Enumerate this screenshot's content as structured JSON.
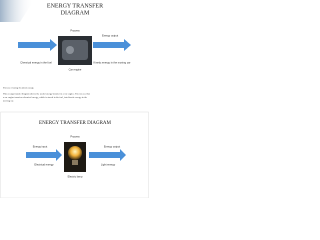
{
  "slide1": {
    "title_lines": [
      "ENERGY TRANSFER",
      "DIAGRAM"
    ],
    "process_label": "Process",
    "input_label": "Chemical energy in the fuel",
    "output_heading": "Energy output",
    "output_label": "Kinetic energy in the moving car",
    "device_label": "Car engine"
  },
  "paragraph": {
    "heading": "Process of using chemical energy",
    "lines": [
      "This energy transfer diagram shows the useful energy transfer in a car engine. You can see that",
      "a car engine transfers chemical energy, which is stored in the fuel, into kinetic energy in the",
      "moving car."
    ]
  },
  "slide2": {
    "title": "ENERGY TRANSFER DIAGRAM",
    "process_label": "Process",
    "input_heading": "Energy input",
    "input_label": "Electrical energy",
    "output_heading": "Energy output",
    "output_label": "Light energy",
    "device_label": "Electric lamp"
  }
}
